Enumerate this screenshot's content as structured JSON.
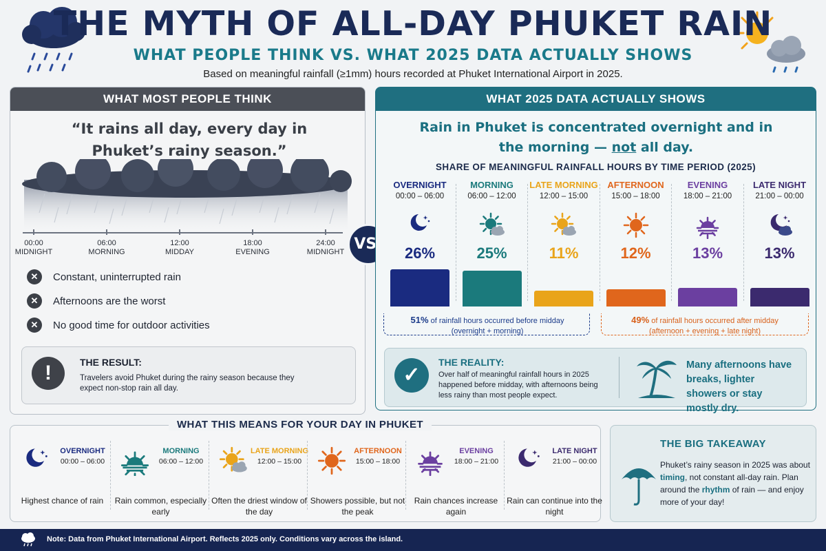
{
  "header": {
    "title": "THE MYTH OF ALL-DAY PHUKET RAIN",
    "subtitle": "WHAT PEOPLE THINK VS. WHAT 2025 DATA ACTUALLY SHOWS",
    "note": "Based on meaningful rainfall (≥1mm) hours recorded at Phuket International Airport in 2025."
  },
  "left": {
    "heading": "WHAT MOST PEOPLE THINK",
    "quote_line1": "“It rains all day, every day in",
    "quote_line2": "Phuket’s rainy season.”",
    "timeline": [
      {
        "time": "00:00",
        "label": "MIDNIGHT"
      },
      {
        "time": "06:00",
        "label": "MORNING"
      },
      {
        "time": "12:00",
        "label": "MIDDAY"
      },
      {
        "time": "18:00",
        "label": "EVENING"
      },
      {
        "time": "24:00",
        "label": "MIDNIGHT"
      }
    ],
    "myths": [
      "Constant, uninterrupted rain",
      "Afternoons are the worst",
      "No good time for outdoor activities"
    ],
    "result_title": "THE RESULT:",
    "result_text": "Travelers avoid Phuket during the rainy season because they expect non-stop rain all day."
  },
  "vs": "VS.",
  "right": {
    "heading": "WHAT 2025 DATA ACTUALLY SHOWS",
    "claim_a": "Rain in Phuket is concentrated overnight and in",
    "claim_b": "the morning — ",
    "claim_not": "not",
    "claim_c": " all day.",
    "share_title": "SHARE OF MEANINGFUL RAINFALL HOURS BY TIME PERIOD (2025)",
    "brace_left_pct": "51%",
    "brace_left_text": " of rainfall hours occurred before midday",
    "brace_left_sub": "(overnight + morning)",
    "brace_right_pct": "49%",
    "brace_right_text": " of rainfall hours occurred after midday",
    "brace_right_sub": "(afternoon + evening + late night)",
    "reality_title": "THE REALITY:",
    "reality_text": "Over half of meaningful rainfall hours in 2025 happened before midday, with afternoons being less rainy than most people expect.",
    "reality_side": "Many afternoons have breaks, lighter showers or stay mostly dry."
  },
  "chart_data": {
    "type": "bar",
    "title": "SHARE OF MEANINGFUL RAINFALL HOURS BY TIME PERIOD (2025)",
    "categories": [
      "OVERNIGHT",
      "MORNING",
      "LATE MORNING",
      "AFTERNOON",
      "EVENING",
      "LATE NIGHT"
    ],
    "times": [
      "00:00 – 06:00",
      "06:00 – 12:00",
      "12:00 – 15:00",
      "15:00 – 18:00",
      "18:00 – 21:00",
      "21:00 – 00:00"
    ],
    "values": [
      26,
      25,
      11,
      12,
      13,
      13
    ],
    "value_labels": [
      "26%",
      "25%",
      "11%",
      "12%",
      "13%",
      "13%"
    ],
    "colors": [
      "#1a2b80",
      "#1b7a7c",
      "#e9a41a",
      "#e0661c",
      "#6b3fa0",
      "#3b2a6e"
    ],
    "icons": [
      "moon-stars-icon",
      "sun-cloud-icon",
      "sun-cloud-icon",
      "sun-icon",
      "sunset-icon",
      "moon-cloud-icon"
    ],
    "ylim": [
      0,
      26
    ]
  },
  "day": {
    "heading": "WHAT THIS MEANS FOR YOUR DAY IN PHUKET",
    "items": [
      {
        "name": "OVERNIGHT",
        "time": "00:00 – 06:00",
        "desc": "Highest chance of rain",
        "color": "#1a2b80",
        "icon": "moon-stars-icon"
      },
      {
        "name": "MORNING",
        "time": "06:00 – 12:00",
        "desc": "Rain common, especially early",
        "color": "#1b7a7c",
        "icon": "sunrise-icon"
      },
      {
        "name": "LATE MORNING",
        "time": "12:00 – 15:00",
        "desc": "Often the driest window of the day",
        "color": "#e9a41a",
        "icon": "sun-cloud-icon"
      },
      {
        "name": "AFTERNOON",
        "time": "15:00 – 18:00",
        "desc": "Showers possible, but not the peak",
        "color": "#e0661c",
        "icon": "sun-icon"
      },
      {
        "name": "EVENING",
        "time": "18:00 – 21:00",
        "desc": "Rain chances increase again",
        "color": "#6b3fa0",
        "icon": "sunset-icon"
      },
      {
        "name": "LATE NIGHT",
        "time": "21:00 – 00:00",
        "desc": "Rain can continue into the night",
        "color": "#3b2a6e",
        "icon": "moon-stars-icon"
      }
    ]
  },
  "takeaway": {
    "title": "THE BIG TAKEAWAY",
    "t1": "Phuket’s rainy season in 2025 was about ",
    "b1": "timing",
    "t2": ", not constant all-day rain. Plan around the ",
    "b2": "rhythm",
    "t3": " of rain — and enjoy more of your day!"
  },
  "footer": {
    "note": "Note: Data from Phuket International Airport. Reflects 2025 only.  Conditions vary across the island."
  }
}
